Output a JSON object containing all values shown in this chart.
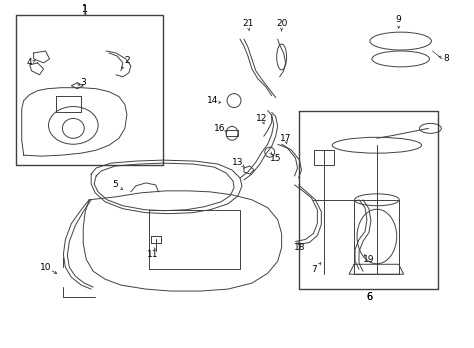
{
  "background_color": "#ffffff",
  "line_color": "#404040",
  "label_color": "#000000",
  "figsize": [
    4.74,
    3.48
  ],
  "dpi": 100
}
